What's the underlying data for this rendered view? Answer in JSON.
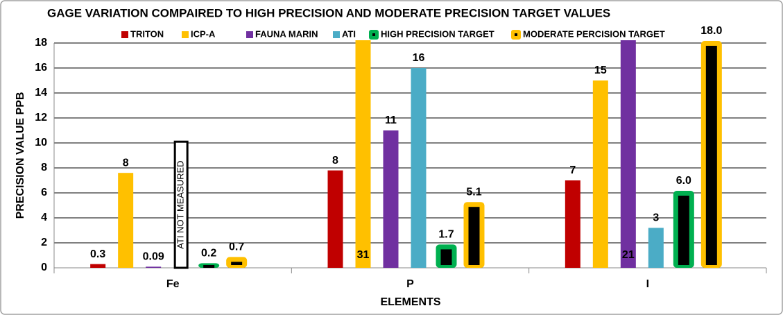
{
  "chart_data": {
    "type": "bar",
    "title": "GAGE  VARIATION COMPAIRED TO HIGH PRECISION AND MODERATE PRECISION TARGET VALUES",
    "xlabel": "ELEMENTS",
    "ylabel": "PRECISION VALUE PPB",
    "categories": [
      "Fe",
      "P",
      "I"
    ],
    "ylim": [
      0,
      18
    ],
    "yticks": [
      0,
      2,
      4,
      6,
      8,
      10,
      12,
      14,
      16,
      18
    ],
    "grid": true,
    "legend": "top",
    "series": [
      {
        "name": "TRITON",
        "color": "#c00000",
        "values": [
          0.3,
          7.8,
          7
        ],
        "value_labels": [
          "0.3",
          "8",
          "7"
        ]
      },
      {
        "name": "ICP-A",
        "color": "#ffc000",
        "values": [
          7.6,
          31,
          15
        ],
        "value_labels": [
          "8",
          "31",
          "15"
        ]
      },
      {
        "name": "FAUNA MARIN",
        "color": "#7030a0",
        "values": [
          0.09,
          11,
          21
        ],
        "value_labels": [
          "0.09",
          "11",
          "21"
        ]
      },
      {
        "name": "ATI",
        "color": "#4bacc6",
        "values": [
          null,
          16,
          3.2
        ],
        "value_labels": [
          null,
          "16",
          "3"
        ]
      },
      {
        "name": "HIGH PRECISION TARGET",
        "color": "#00b050",
        "inner_color": "#000000",
        "values": [
          0.2,
          1.7,
          6.0
        ],
        "value_labels": [
          "0.2",
          "1.7",
          "6.0"
        ]
      },
      {
        "name": "MODERATE PERCISION TARGET",
        "color": "#ffc000",
        "inner_color": "#000000",
        "values": [
          0.7,
          5.1,
          18.0
        ],
        "value_labels": [
          "0.7",
          "5.1",
          "18.0"
        ]
      }
    ],
    "annotations": [
      {
        "text": "ATI NOT MEASURED"
      }
    ]
  }
}
